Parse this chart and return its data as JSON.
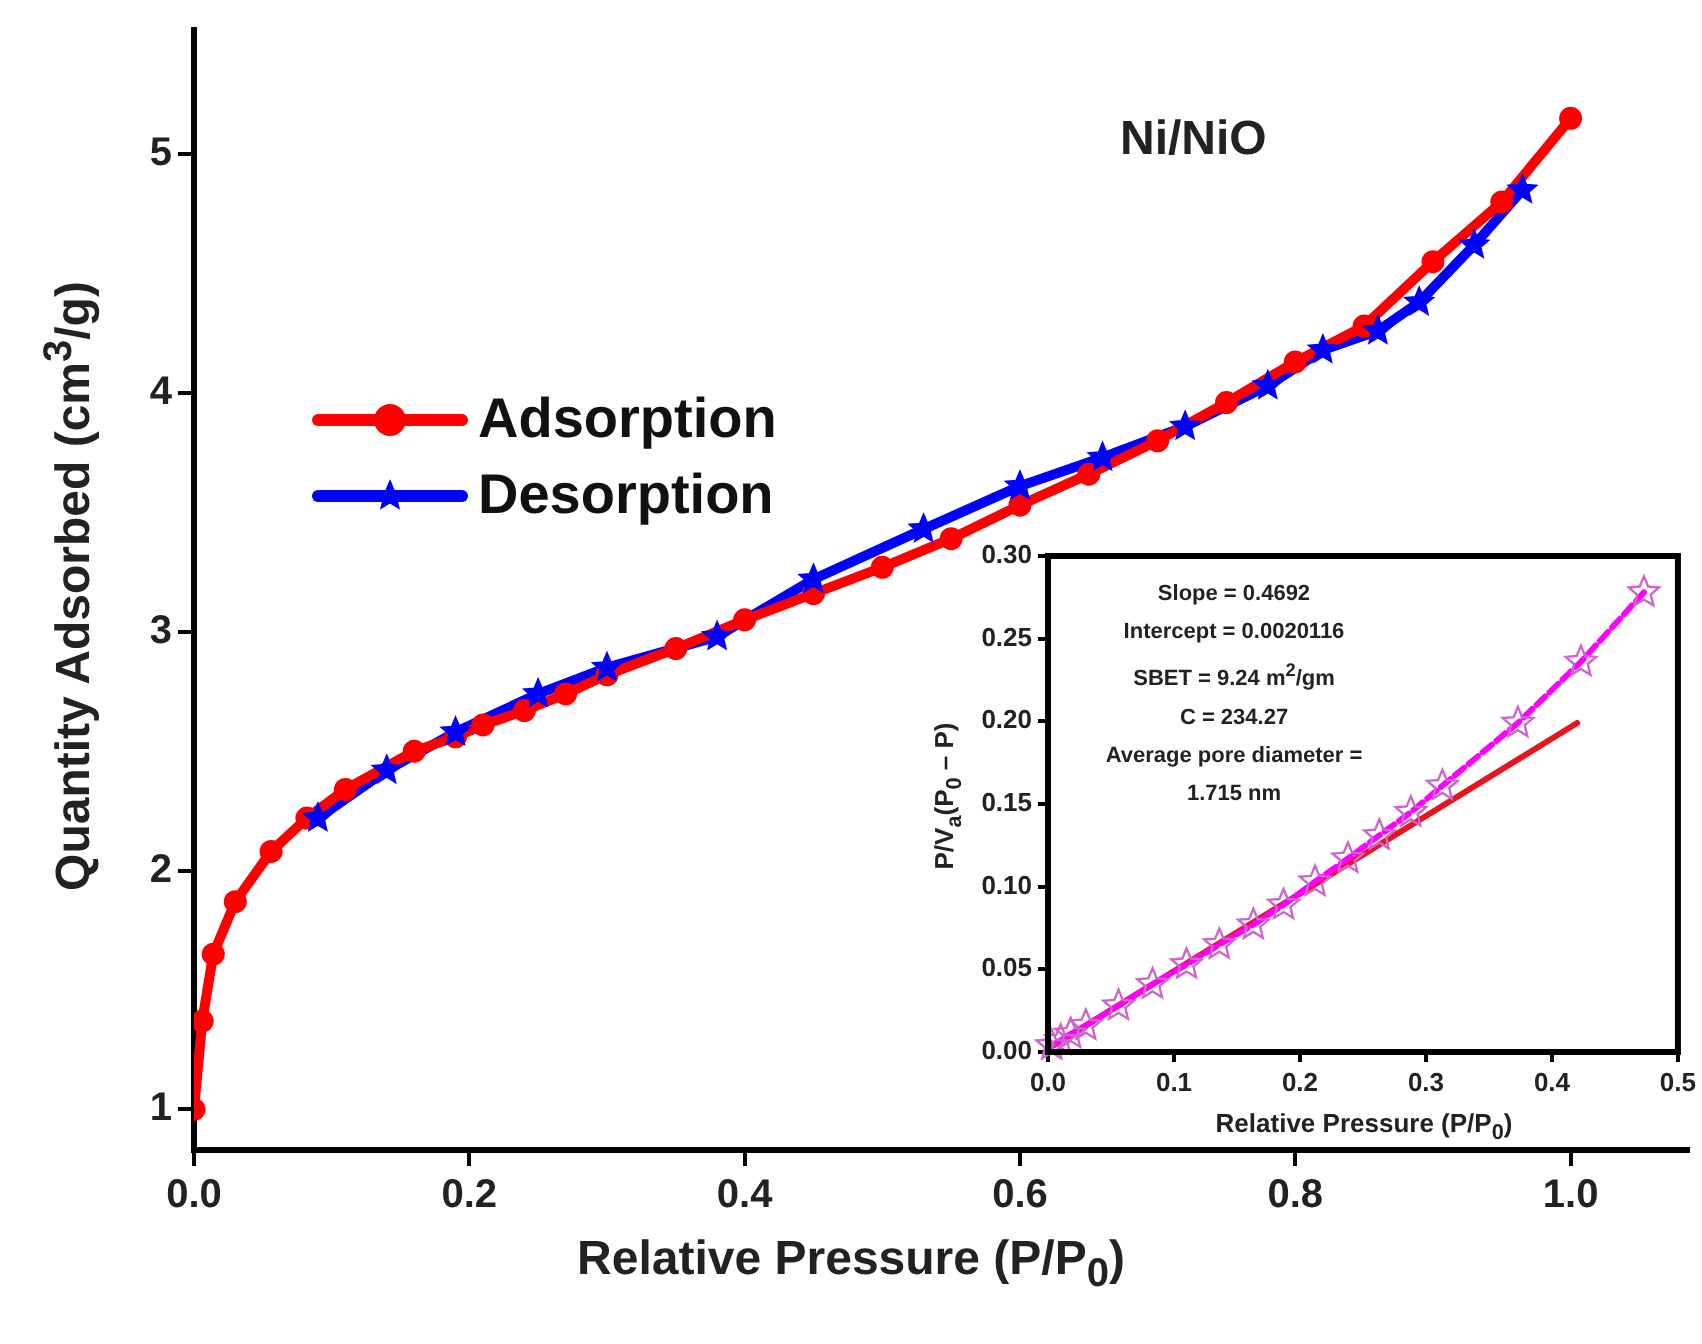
{
  "chart_data": [
    {
      "type": "line",
      "xlabel": "Relative Pressure (P/P$_{0}$)",
      "ylabel": "Quantity Adsorbed (cm$^{3}$/g)",
      "annotations": [
        "Ni/NiO"
      ],
      "legend": "top left",
      "grid": false,
      "line_style": "solid",
      "xlim": [
        0,
        1.086
      ],
      "xticks": [
        {
          "value": 0,
          "label": "0.0"
        },
        {
          "value": 0.2,
          "label": "0.2"
        },
        {
          "value": 0.4,
          "label": "0.4"
        },
        {
          "value": 0.6,
          "label": "0.6"
        },
        {
          "value": 0.8,
          "label": "0.8"
        },
        {
          "value": 1,
          "label": "1.0"
        }
      ],
      "ylim": [
        0.83,
        5.52
      ],
      "yticks": [
        1,
        2,
        3,
        4,
        5
      ],
      "series": [
        {
          "name": "Adsorption",
          "color": "#ff0000",
          "marker": "circle",
          "x": [
            0,
            0.006,
            0.014,
            0.03,
            0.056,
            0.082,
            0.11,
            0.16,
            0.19,
            0.21,
            0.24,
            0.27,
            0.3,
            0.35,
            0.4,
            0.45,
            0.5,
            0.55,
            0.6,
            0.65,
            0.7,
            0.75,
            0.8,
            0.85,
            0.9,
            0.95,
            1.0
          ],
          "values": [
            1.0,
            1.37,
            1.65,
            1.87,
            2.08,
            2.22,
            2.34,
            2.5,
            2.56,
            2.61,
            2.67,
            2.74,
            2.82,
            2.93,
            3.05,
            3.16,
            3.27,
            3.39,
            3.53,
            3.66,
            3.8,
            3.96,
            4.13,
            4.28,
            4.55,
            4.8,
            5.15
          ]
        },
        {
          "name": "Desorption",
          "color": "#0000ff",
          "marker": "star",
          "x": [
            0.09,
            0.14,
            0.19,
            0.25,
            0.3,
            0.38,
            0.45,
            0.53,
            0.6,
            0.66,
            0.72,
            0.78,
            0.82,
            0.86,
            0.89,
            0.93,
            0.965
          ],
          "values": [
            2.22,
            2.42,
            2.58,
            2.74,
            2.85,
            2.98,
            3.22,
            3.43,
            3.61,
            3.73,
            3.86,
            4.03,
            4.18,
            4.26,
            4.38,
            4.62,
            4.85
          ]
        }
      ]
    },
    {
      "type": "scatter",
      "xlabel": "Relative Pressure (P/P$_{0}$)",
      "ylabel": "P/V$_{a}$(P$_{0}$ – P)",
      "annotations": [
        "Slope = 0.4692",
        "Intercept = 0.0020116",
        "SBET = 9.24 m$^{2}$/gm",
        "C = 234.27",
        "Average pore diameter = 1.715 nm"
      ],
      "grid": false,
      "xlim": [
        0,
        0.5
      ],
      "xticks": [
        {
          "value": 0,
          "label": "0.0"
        },
        {
          "value": 0.1,
          "label": "0.1"
        },
        {
          "value": 0.2,
          "label": "0.2"
        },
        {
          "value": 0.3,
          "label": "0.3"
        },
        {
          "value": 0.4,
          "label": "0.4"
        },
        {
          "value": 0.5,
          "label": "0.5"
        }
      ],
      "ylim": [
        0,
        0.3
      ],
      "yticks": [
        {
          "value": 0,
          "label": "0.00"
        },
        {
          "value": 0.05,
          "label": "0.05"
        },
        {
          "value": 0.1,
          "label": "0.10"
        },
        {
          "value": 0.15,
          "label": "0.15"
        },
        {
          "value": 0.2,
          "label": "0.20"
        },
        {
          "value": 0.25,
          "label": "0.25"
        },
        {
          "value": 0.3,
          "label": "0.30"
        }
      ],
      "series": [
        {
          "type": "line",
          "color": "#ff00ff",
          "marker": "star",
          "line_style": "dashed",
          "x": [
            0.003,
            0.01,
            0.018,
            0.03,
            0.056,
            0.083,
            0.11,
            0.136,
            0.163,
            0.187,
            0.212,
            0.238,
            0.263,
            0.288,
            0.313,
            0.373,
            0.423,
            0.473
          ],
          "values": [
            0.004,
            0.007,
            0.011,
            0.016,
            0.028,
            0.041,
            0.053,
            0.065,
            0.077,
            0.089,
            0.103,
            0.117,
            0.131,
            0.145,
            0.161,
            0.199,
            0.236,
            0.278
          ]
        },
        {
          "type": "line",
          "color": "#e8141e",
          "marker": "none",
          "line_style": "solid",
          "x": [
            0,
            0.42
          ],
          "values": [
            0.002,
            0.199
          ]
        }
      ]
    }
  ]
}
